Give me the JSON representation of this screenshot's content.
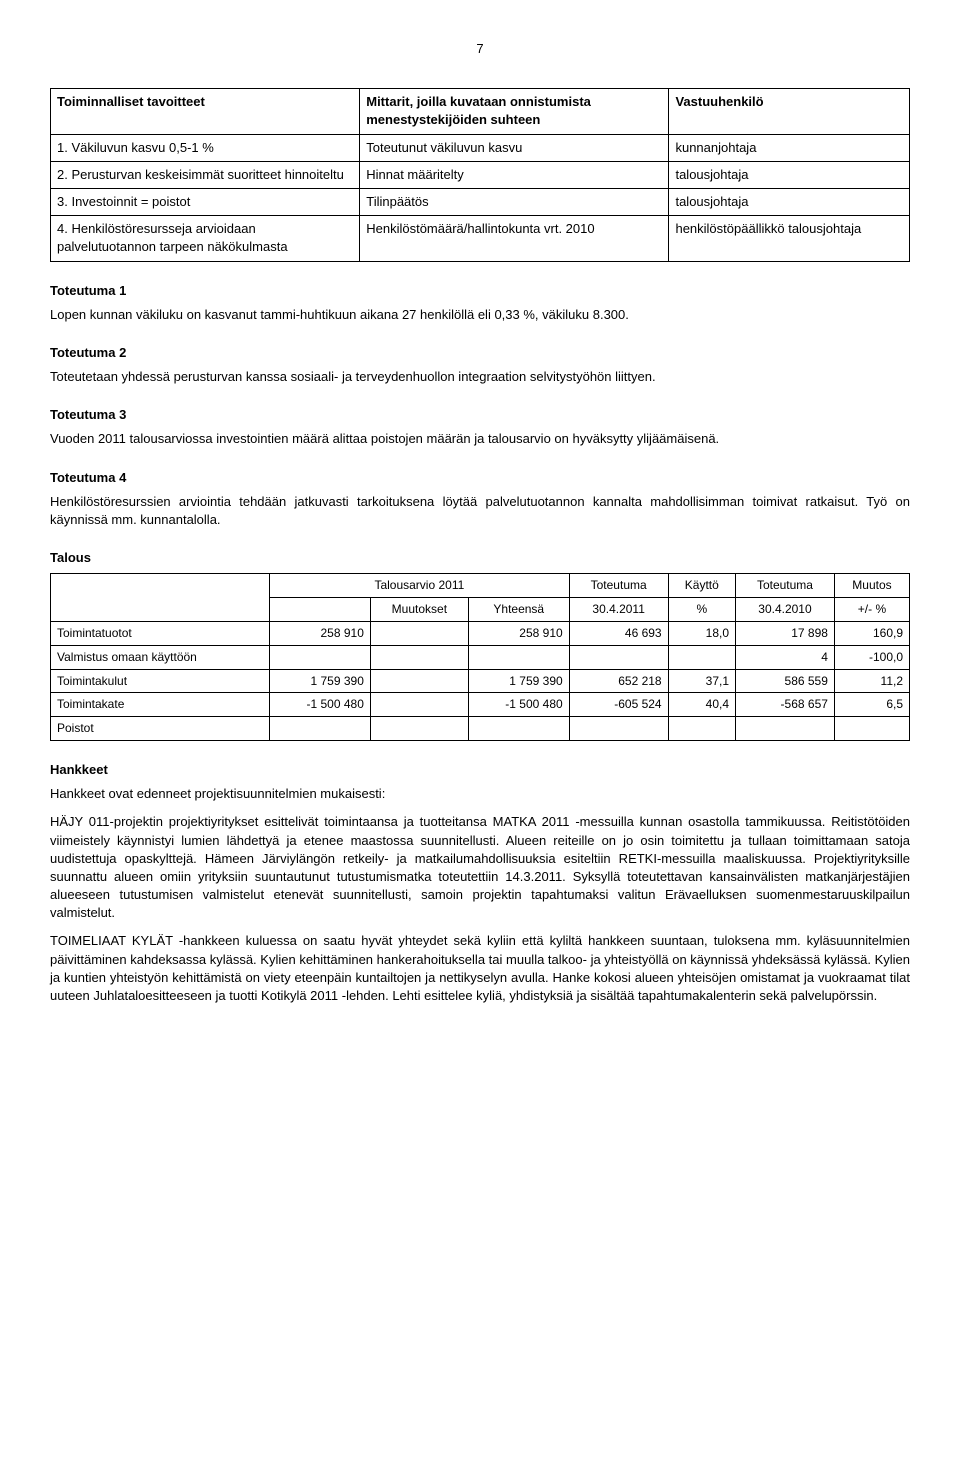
{
  "page_number": "7",
  "objectives_table": {
    "headers": [
      "Toiminnalliset tavoitteet",
      "Mittarit, joilla kuvataan onnistumista menestystekijöiden suhteen",
      "Vastuuhenkilö"
    ],
    "rows": [
      [
        "1. Väkiluvun kasvu 0,5-1 %",
        "Toteutunut väkiluvun kasvu",
        "kunnanjohtaja"
      ],
      [
        "2. Perusturvan keskeisimmät suoritteet hinnoiteltu",
        "Hinnat määritelty",
        "talousjohtaja"
      ],
      [
        "3. Investoinnit = poistot",
        "Tilinpäätös",
        "talousjohtaja"
      ],
      [
        "4. Henkilöstöresursseja arvioidaan palvelutuotannon tarpeen näkökulmasta",
        "Henkilöstömäärä/hallintokunta vrt. 2010",
        "henkilöstöpäällikkö talousjohtaja"
      ]
    ]
  },
  "toteutuma1": {
    "heading": "Toteutuma 1",
    "text": "Lopen kunnan väkiluku on kasvanut tammi-huhtikuun aikana 27 henkilöllä eli 0,33 %, väkiluku 8.300."
  },
  "toteutuma2": {
    "heading": "Toteutuma 2",
    "text": "Toteutetaan yhdessä perusturvan kanssa sosiaali- ja terveydenhuollon integraation selvitystyöhön liittyen."
  },
  "toteutuma3": {
    "heading": "Toteutuma 3",
    "text": "Vuoden 2011 talousarviossa investointien määrä alittaa poistojen määrän ja talousarvio on hyväksytty ylijäämäisenä."
  },
  "toteutuma4": {
    "heading": "Toteutuma 4",
    "text": "Henkilöstöresurssien arviointia tehdään jatkuvasti tarkoituksena löytää palvelutuotannon kannalta mahdollisimman toimivat ratkaisut. Työ on käynnissä mm. kunnantalolla."
  },
  "talous": {
    "heading": "Talous",
    "header_row1": [
      "",
      "Talousarvio 2011",
      "Toteutuma",
      "Käyttö",
      "Toteutuma",
      "Muutos"
    ],
    "header_row2": [
      "",
      "",
      "Muutokset",
      "Yhteensä",
      "30.4.2011",
      "%",
      "30.4.2010",
      "+/- %"
    ],
    "rows": [
      {
        "label": "Toimintatuotot",
        "c1": "258 910",
        "c2": "",
        "c3": "258 910",
        "c4": "46 693",
        "c5": "18,0",
        "c6": "17 898",
        "c7": "160,9"
      },
      {
        "label": "Valmistus omaan käyttöön",
        "c1": "",
        "c2": "",
        "c3": "",
        "c4": "",
        "c5": "",
        "c6": "4",
        "c7": "-100,0"
      },
      {
        "label": "Toimintakulut",
        "c1": "1 759 390",
        "c2": "",
        "c3": "1 759 390",
        "c4": "652 218",
        "c5": "37,1",
        "c6": "586 559",
        "c7": "11,2"
      },
      {
        "label": "Toimintakate",
        "c1": "-1 500 480",
        "c2": "",
        "c3": "-1 500 480",
        "c4": "-605 524",
        "c5": "40,4",
        "c6": "-568 657",
        "c7": "6,5"
      },
      {
        "label": "Poistot",
        "c1": "",
        "c2": "",
        "c3": "",
        "c4": "",
        "c5": "",
        "c6": "",
        "c7": ""
      }
    ]
  },
  "hankkeet": {
    "heading": "Hankkeet",
    "intro": "Hankkeet ovat edenneet projektisuunnitelmien mukaisesti:",
    "p1": "HÄJY 011-projektin projektiyritykset esittelivät toimintaansa ja tuotteitansa MATKA 2011 -messuilla kunnan osastolla tammikuussa. Reitistötöiden viimeistely käynnistyi lumien lähdettyä ja etenee maastossa suunnitellusti. Alueen reiteille on jo osin toimitettu ja tullaan toimittamaan satoja uudistettuja opaskylttejä. Hämeen Järviylängön retkeily- ja matkailumahdollisuuksia esiteltiin RETKI-messuilla maaliskuussa. Projektiyrityksille suunnattu alueen omiin yrityksiin suuntautunut tutustumismatka toteutettiin 14.3.2011. Syksyllä toteutettavan kansainvälisten matkanjärjestäjien alueeseen tutustumisen valmistelut etenevät suunnitellusti, samoin projektin tapahtumaksi valitun Erävaelluksen suomenmestaruuskilpailun valmistelut.",
    "p2": "TOIMELIAAT KYLÄT -hankkeen kuluessa on saatu hyvät yhteydet sekä kyliin että kyliltä hankkeen suuntaan, tuloksena mm. kyläsuunnitelmien päivittäminen kahdeksassa kylässä. Kylien kehittäminen hankerahoituksella tai muulla talkoo- ja yhteistyöllä on käynnissä yhdeksässä kylässä. Kylien ja kuntien yhteistyön kehittämistä on viety eteenpäin kuntailtojen ja nettikyselyn avulla. Hanke kokosi alueen yhteisöjen omistamat ja vuokraamat tilat uuteen Juhlataloesitteeseen ja tuotti Kotikylä 2011 -lehden. Lehti esittelee kyliä, yhdistyksiä ja sisältää tapahtumakalenterin sekä palvelupörssin."
  }
}
